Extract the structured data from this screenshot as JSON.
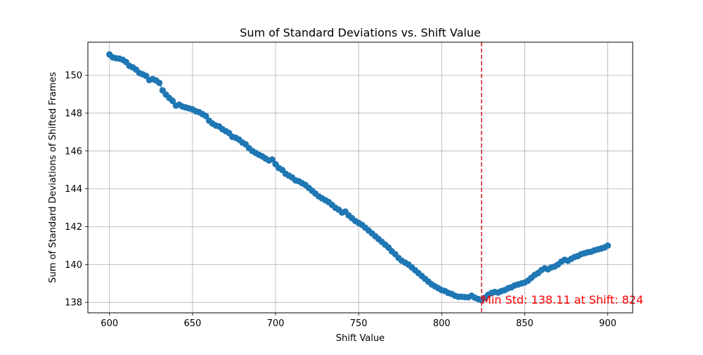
{
  "chart_data": {
    "type": "line",
    "title": "Sum of Standard Deviations vs. Shift Value",
    "xlabel": "Shift Value",
    "ylabel": "Sum of Standard Deviations of Shifted Frames",
    "xlim": [
      587,
      915
    ],
    "ylim": [
      137.45,
      151.75
    ],
    "xticks": [
      600,
      650,
      700,
      750,
      800,
      850,
      900
    ],
    "yticks": [
      138,
      140,
      142,
      144,
      146,
      148,
      150
    ],
    "grid": true,
    "series": [
      {
        "color": "#1f77b4",
        "marker": "circle",
        "points": [
          [
            600,
            151.1
          ],
          [
            602,
            150.95
          ],
          [
            604,
            150.9
          ],
          [
            606,
            150.88
          ],
          [
            608,
            150.82
          ],
          [
            610,
            150.7
          ],
          [
            612,
            150.5
          ],
          [
            614,
            150.42
          ],
          [
            616,
            150.3
          ],
          [
            618,
            150.12
          ],
          [
            620,
            150.05
          ],
          [
            622,
            149.97
          ],
          [
            624,
            149.75
          ],
          [
            626,
            149.8
          ],
          [
            628,
            149.73
          ],
          [
            630,
            149.6
          ],
          [
            632,
            149.2
          ],
          [
            634,
            148.98
          ],
          [
            636,
            148.8
          ],
          [
            638,
            148.65
          ],
          [
            640,
            148.4
          ],
          [
            642,
            148.45
          ],
          [
            644,
            148.35
          ],
          [
            646,
            148.3
          ],
          [
            648,
            148.25
          ],
          [
            650,
            148.2
          ],
          [
            652,
            148.1
          ],
          [
            654,
            148.05
          ],
          [
            656,
            147.95
          ],
          [
            658,
            147.85
          ],
          [
            660,
            147.6
          ],
          [
            662,
            147.45
          ],
          [
            664,
            147.35
          ],
          [
            666,
            147.3
          ],
          [
            668,
            147.15
          ],
          [
            670,
            147.05
          ],
          [
            672,
            146.95
          ],
          [
            674,
            146.75
          ],
          [
            676,
            146.7
          ],
          [
            678,
            146.6
          ],
          [
            680,
            146.45
          ],
          [
            682,
            146.35
          ],
          [
            684,
            146.15
          ],
          [
            686,
            146.0
          ],
          [
            688,
            145.9
          ],
          [
            690,
            145.8
          ],
          [
            692,
            145.72
          ],
          [
            694,
            145.6
          ],
          [
            696,
            145.5
          ],
          [
            698,
            145.55
          ],
          [
            700,
            145.3
          ],
          [
            702,
            145.1
          ],
          [
            704,
            145.0
          ],
          [
            706,
            144.8
          ],
          [
            708,
            144.7
          ],
          [
            710,
            144.6
          ],
          [
            712,
            144.45
          ],
          [
            714,
            144.4
          ],
          [
            716,
            144.3
          ],
          [
            718,
            144.2
          ],
          [
            720,
            144.05
          ],
          [
            722,
            143.9
          ],
          [
            724,
            143.75
          ],
          [
            726,
            143.6
          ],
          [
            728,
            143.5
          ],
          [
            730,
            143.4
          ],
          [
            732,
            143.3
          ],
          [
            734,
            143.15
          ],
          [
            736,
            143.0
          ],
          [
            738,
            142.9
          ],
          [
            740,
            142.75
          ],
          [
            742,
            142.8
          ],
          [
            744,
            142.6
          ],
          [
            746,
            142.45
          ],
          [
            748,
            142.3
          ],
          [
            750,
            142.2
          ],
          [
            752,
            142.1
          ],
          [
            754,
            141.95
          ],
          [
            756,
            141.8
          ],
          [
            758,
            141.65
          ],
          [
            760,
            141.5
          ],
          [
            762,
            141.35
          ],
          [
            764,
            141.2
          ],
          [
            766,
            141.05
          ],
          [
            768,
            140.9
          ],
          [
            770,
            140.7
          ],
          [
            772,
            140.55
          ],
          [
            774,
            140.35
          ],
          [
            776,
            140.2
          ],
          [
            778,
            140.1
          ],
          [
            780,
            140.0
          ],
          [
            782,
            139.85
          ],
          [
            784,
            139.7
          ],
          [
            786,
            139.55
          ],
          [
            788,
            139.4
          ],
          [
            790,
            139.25
          ],
          [
            792,
            139.1
          ],
          [
            794,
            138.95
          ],
          [
            796,
            138.85
          ],
          [
            798,
            138.75
          ],
          [
            800,
            138.65
          ],
          [
            802,
            138.6
          ],
          [
            804,
            138.5
          ],
          [
            806,
            138.45
          ],
          [
            808,
            138.35
          ],
          [
            810,
            138.3
          ],
          [
            812,
            138.3
          ],
          [
            814,
            138.28
          ],
          [
            816,
            138.27
          ],
          [
            818,
            138.35
          ],
          [
            820,
            138.25
          ],
          [
            822,
            138.18
          ],
          [
            824,
            138.11
          ],
          [
            826,
            138.25
          ],
          [
            828,
            138.4
          ],
          [
            830,
            138.5
          ],
          [
            832,
            138.55
          ],
          [
            834,
            138.52
          ],
          [
            836,
            138.6
          ],
          [
            838,
            138.65
          ],
          [
            840,
            138.75
          ],
          [
            842,
            138.8
          ],
          [
            844,
            138.9
          ],
          [
            846,
            138.95
          ],
          [
            848,
            139.0
          ],
          [
            850,
            139.05
          ],
          [
            852,
            139.15
          ],
          [
            854,
            139.3
          ],
          [
            856,
            139.45
          ],
          [
            858,
            139.55
          ],
          [
            860,
            139.7
          ],
          [
            862,
            139.8
          ],
          [
            864,
            139.75
          ],
          [
            866,
            139.85
          ],
          [
            868,
            139.9
          ],
          [
            870,
            140.0
          ],
          [
            872,
            140.15
          ],
          [
            874,
            140.25
          ],
          [
            876,
            140.2
          ],
          [
            878,
            140.3
          ],
          [
            880,
            140.4
          ],
          [
            882,
            140.45
          ],
          [
            884,
            140.55
          ],
          [
            886,
            140.6
          ],
          [
            888,
            140.65
          ],
          [
            890,
            140.68
          ],
          [
            892,
            140.75
          ],
          [
            894,
            140.8
          ],
          [
            896,
            140.85
          ],
          [
            898,
            140.9
          ],
          [
            900,
            141.0
          ]
        ]
      }
    ],
    "vline": {
      "x": 824,
      "color": "#d62728",
      "style": "dashed"
    },
    "annotation": {
      "x": 824,
      "y": 138.11,
      "text": "Min Std: 138.11 at Shift: 824",
      "color": "#ff0000"
    }
  }
}
